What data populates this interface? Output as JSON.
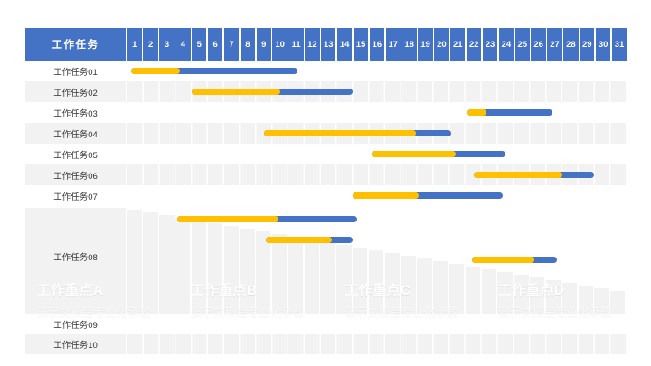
{
  "header": {
    "task_col_label": "工作任务",
    "days": [
      "1",
      "2",
      "3",
      "4",
      "5",
      "6",
      "7",
      "8",
      "9",
      "10",
      "11",
      "12",
      "13",
      "14",
      "15",
      "16",
      "17",
      "18",
      "19",
      "20",
      "21",
      "22",
      "23",
      "24",
      "25",
      "26",
      "27",
      "28",
      "29",
      "30",
      "31"
    ]
  },
  "colors": {
    "header_blue": "#4472C4",
    "bar_blue": "#4472C4",
    "bar_yellow": "#FFC000",
    "row_alt_gray": "#F2F2F2",
    "background": "#FFFFFF"
  },
  "chart_data": {
    "type": "gantt",
    "title": "工作任务",
    "x_axis": {
      "unit": "day",
      "min": 1,
      "max": 31
    },
    "units_note": "bar positions are days elapsed from the start of day 1 (scale 0-31); each bar has a yellow first phase then a blue second phase split at split_day",
    "rows": [
      {
        "label": "工作任务01",
        "zebra": "white",
        "bar": {
          "start_day": 0.25,
          "split_day": 3.3,
          "end_day": 10.6
        }
      },
      {
        "label": "工作任务02",
        "zebra": "gray",
        "bar": {
          "start_day": 4.0,
          "split_day": 9.5,
          "end_day": 14.0
        }
      },
      {
        "label": "工作任务03",
        "zebra": "white",
        "bar": {
          "start_day": 21.1,
          "split_day": 22.3,
          "end_day": 26.4
        }
      },
      {
        "label": "工作任务04",
        "zebra": "gray",
        "bar": {
          "start_day": 8.5,
          "split_day": 17.9,
          "end_day": 20.1
        }
      },
      {
        "label": "工作任务05",
        "zebra": "white",
        "bar": {
          "start_day": 15.2,
          "split_day": 20.4,
          "end_day": 23.5
        }
      },
      {
        "label": "工作任务06",
        "zebra": "gray",
        "bar": {
          "start_day": 21.5,
          "split_day": 27.0,
          "end_day": 29.0
        }
      },
      {
        "label": "工作任务07",
        "zebra": "white",
        "bar": {
          "start_day": 14.0,
          "split_day": 18.1,
          "end_day": 23.3
        }
      }
    ],
    "highlight_section": {
      "extra_bars": [
        {
          "start_day": 3.1,
          "split_day": 9.4,
          "end_day": 14.3
        },
        {
          "start_day": 8.6,
          "split_day": 12.7,
          "end_day": 14.0
        }
      ],
      "task08": {
        "label": "工作任务08",
        "bar": {
          "start_day": 21.4,
          "split_day": 25.3,
          "end_day": 26.7
        }
      },
      "watermarks": [
        {
          "title": "工作重点A",
          "subtitle": "演示文稿是专业化承载"
        },
        {
          "title": "工作重点B",
          "subtitle": "演示文稿是专业化承载"
        },
        {
          "title": "工作重点C",
          "subtitle": "演示文稿是专业化承载"
        },
        {
          "title": "工作重点D",
          "subtitle": "演示文稿是专业化承载"
        }
      ]
    },
    "empty_rows": [
      {
        "label": "工作任务09",
        "zebra": "white"
      },
      {
        "label": "工作任务10",
        "zebra": "gray"
      }
    ]
  }
}
